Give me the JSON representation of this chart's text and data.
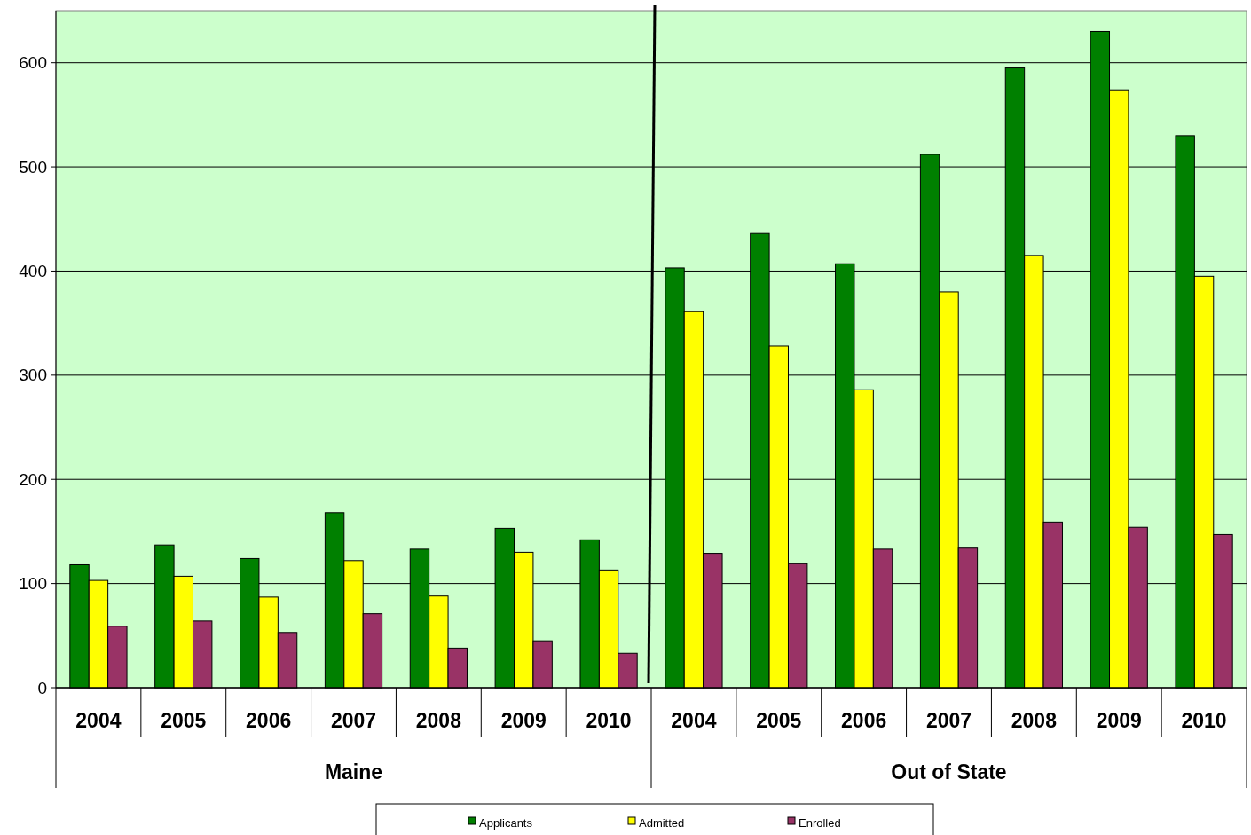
{
  "chart_data": {
    "type": "bar",
    "categories": [
      "2004",
      "2005",
      "2006",
      "2007",
      "2008",
      "2009",
      "2010",
      "2004",
      "2005",
      "2006",
      "2007",
      "2008",
      "2009",
      "2010"
    ],
    "series": [
      {
        "name": "Applicants",
        "color": "#008000",
        "values": [
          118,
          137,
          124,
          168,
          133,
          153,
          142,
          403,
          436,
          407,
          512,
          595,
          630,
          530
        ]
      },
      {
        "name": "Admitted",
        "color": "#ffff00",
        "values": [
          103,
          107,
          87,
          122,
          88,
          130,
          113,
          361,
          328,
          286,
          380,
          415,
          574,
          395
        ]
      },
      {
        "name": "Enrolled",
        "color": "#993366",
        "values": [
          59,
          64,
          53,
          71,
          38,
          45,
          33,
          129,
          119,
          133,
          134,
          159,
          154,
          147
        ]
      }
    ],
    "annotations": [
      "Maine",
      "Out of State"
    ],
    "ylim": [
      0,
      650
    ],
    "yticks": [
      0,
      100,
      200,
      300,
      400,
      500,
      600
    ],
    "grid": "y",
    "legend": "bottom"
  }
}
